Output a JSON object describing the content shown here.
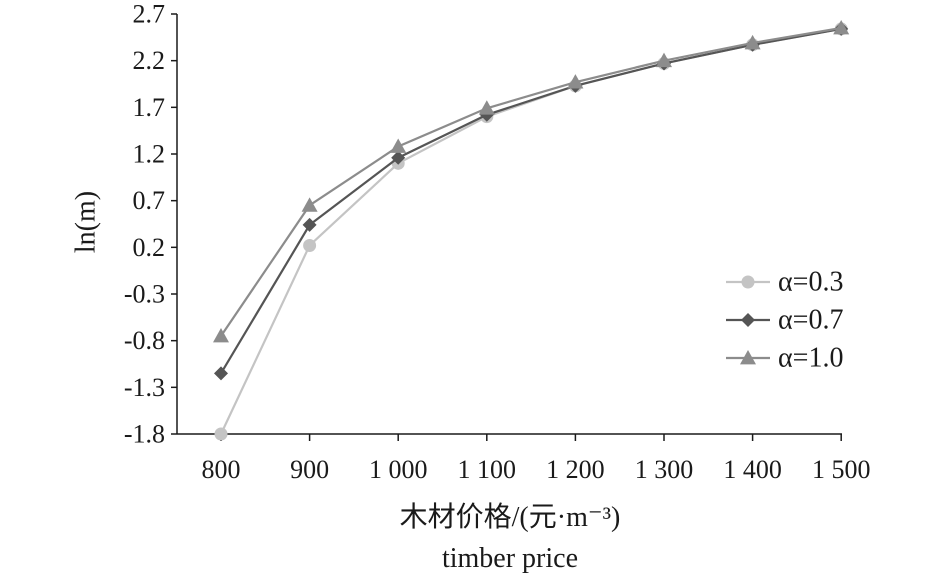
{
  "chart_data": {
    "type": "line",
    "xlabel": "木材价格/(元·m⁻³)",
    "xlabel_en": "timber price",
    "ylabel": "ln(m)",
    "categories": [
      "800",
      "900",
      "1 000",
      "1 100",
      "1 200",
      "1 300",
      "1 400",
      "1 500"
    ],
    "y_ticks": [
      "2.7",
      "2.2",
      "1.7",
      "1.2",
      "0.7",
      "0.2",
      "-0.3",
      "-0.8",
      "-1.3",
      "-1.8"
    ],
    "ylim": [
      -1.8,
      2.7
    ],
    "grid": false,
    "legend_position": "right",
    "series": [
      {
        "name": "α=0.3",
        "marker": "circle",
        "color": "#c4c4c4",
        "values": [
          -1.8,
          0.22,
          1.1,
          1.6,
          1.93,
          2.17,
          2.37,
          2.54
        ]
      },
      {
        "name": "α=0.7",
        "marker": "diamond",
        "color": "#555555",
        "values": [
          -1.15,
          0.44,
          1.16,
          1.62,
          1.93,
          2.17,
          2.37,
          2.54
        ]
      },
      {
        "name": "α=1.0",
        "marker": "triangle",
        "color": "#8c8c8c",
        "values": [
          -0.75,
          0.65,
          1.28,
          1.69,
          1.97,
          2.2,
          2.39,
          2.55
        ]
      }
    ]
  }
}
